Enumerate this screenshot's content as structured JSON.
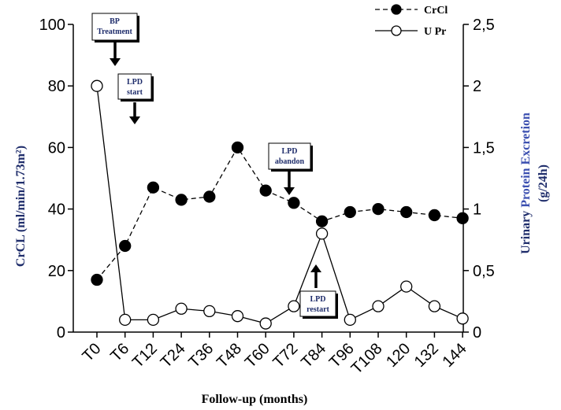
{
  "chart_data": {
    "type": "line",
    "x_categories": [
      "T0",
      "T6",
      "T12",
      "T24",
      "T36",
      "T48",
      "T60",
      "T72",
      "T84",
      "T96",
      "T108",
      "120",
      "132",
      "144"
    ],
    "xlabel": "Follow-up (months)",
    "ylabel_left": "CrCL (ml/min/1.73m²)",
    "ylabel_right": {
      "line1_part1": "Urinary ",
      "line1_part2": "Protein Excretion",
      "line2": "(g/24h)"
    },
    "ylim_left": [
      0,
      100
    ],
    "yticks_left": [
      "0",
      "20",
      "40",
      "60",
      "80",
      "100"
    ],
    "ylim_right": [
      0,
      2.5
    ],
    "yticks_right": [
      "0",
      "0,5",
      "1",
      "1,5",
      "2",
      "2,5"
    ],
    "legend_position": "top-right",
    "series": [
      {
        "name": "CrCl",
        "axis": "left",
        "style": "dashed-filled",
        "values": [
          17,
          28,
          47,
          43,
          44,
          60,
          46,
          42,
          36,
          39,
          40,
          39,
          38,
          37
        ]
      },
      {
        "name": "U Pr",
        "axis": "right",
        "style": "solid-open",
        "values": [
          2.0,
          0.1,
          0.1,
          0.19,
          0.17,
          0.13,
          0.07,
          0.21,
          0.8,
          0.1,
          0.21,
          0.37,
          0.21,
          0.11
        ]
      }
    ],
    "annotations": [
      {
        "line1": "BP",
        "line2": "Treatment",
        "arrow": "down"
      },
      {
        "line1": "LPD",
        "line2": "start",
        "arrow": "down"
      },
      {
        "line1": "LPD",
        "line2": "abandon",
        "arrow": "down"
      },
      {
        "line1": "LPD",
        "line2": "restart",
        "arrow": "up"
      }
    ],
    "colors": {
      "axis": "#000000",
      "annotation_text": "#1f2d6b",
      "ylabel_left": "#1f2d6b",
      "ylabel_right_part1": "#1f2d6b",
      "ylabel_right_part2": "#3b4fb0"
    }
  }
}
